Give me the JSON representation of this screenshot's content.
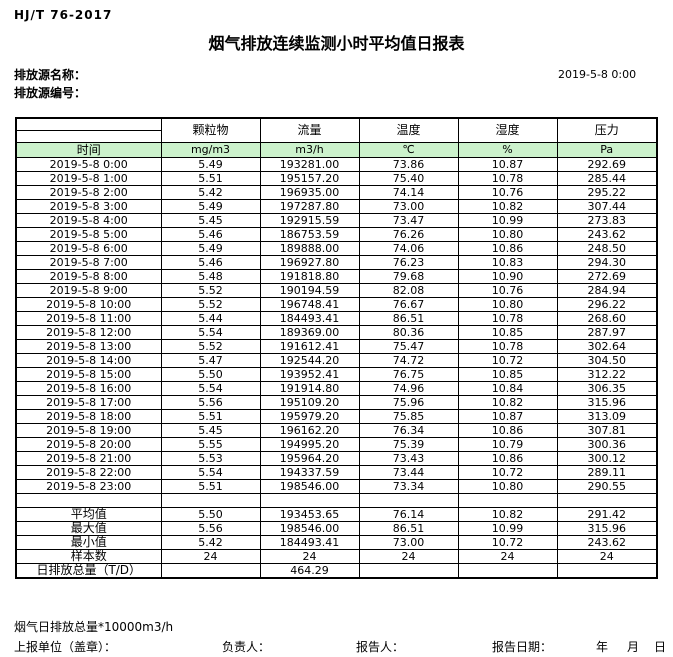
{
  "header": {
    "standard": "HJ/T 76-2017",
    "title": "烟气排放连续监测小时平均值日报表",
    "source_name_label": "排放源名称：",
    "source_code_label": "排放源编号：",
    "datetime": "2019-5-8 0:00"
  },
  "table": {
    "time_label": "时间",
    "columns": [
      "颗粒物",
      "流量",
      "温度",
      "湿度",
      "压力"
    ],
    "units": [
      "mg/m3",
      "m3/h",
      "℃",
      "%",
      "Pa"
    ],
    "rows": [
      {
        "time": "2019-5-8 0:00",
        "values": [
          "5.49",
          "193281.00",
          "73.86",
          "10.87",
          "292.69"
        ]
      },
      {
        "time": "2019-5-8 1:00",
        "values": [
          "5.51",
          "195157.20",
          "75.40",
          "10.78",
          "285.44"
        ]
      },
      {
        "time": "2019-5-8 2:00",
        "values": [
          "5.42",
          "196935.00",
          "74.14",
          "10.76",
          "295.22"
        ]
      },
      {
        "time": "2019-5-8 3:00",
        "values": [
          "5.49",
          "197287.80",
          "73.00",
          "10.82",
          "307.44"
        ]
      },
      {
        "time": "2019-5-8 4:00",
        "values": [
          "5.45",
          "192915.59",
          "73.47",
          "10.99",
          "273.83"
        ]
      },
      {
        "time": "2019-5-8 5:00",
        "values": [
          "5.46",
          "186753.59",
          "76.26",
          "10.80",
          "243.62"
        ]
      },
      {
        "time": "2019-5-8 6:00",
        "values": [
          "5.49",
          "189888.00",
          "74.06",
          "10.86",
          "248.50"
        ]
      },
      {
        "time": "2019-5-8 7:00",
        "values": [
          "5.46",
          "196927.80",
          "76.23",
          "10.83",
          "294.30"
        ]
      },
      {
        "time": "2019-5-8 8:00",
        "values": [
          "5.48",
          "191818.80",
          "79.68",
          "10.90",
          "272.69"
        ]
      },
      {
        "time": "2019-5-8 9:00",
        "values": [
          "5.52",
          "190194.59",
          "82.08",
          "10.76",
          "284.94"
        ]
      },
      {
        "time": "2019-5-8 10:00",
        "values": [
          "5.52",
          "196748.41",
          "76.67",
          "10.80",
          "296.22"
        ]
      },
      {
        "time": "2019-5-8 11:00",
        "values": [
          "5.44",
          "184493.41",
          "86.51",
          "10.78",
          "268.60"
        ]
      },
      {
        "time": "2019-5-8 12:00",
        "values": [
          "5.54",
          "189369.00",
          "80.36",
          "10.85",
          "287.97"
        ]
      },
      {
        "time": "2019-5-8 13:00",
        "values": [
          "5.52",
          "191612.41",
          "75.47",
          "10.78",
          "302.64"
        ]
      },
      {
        "time": "2019-5-8 14:00",
        "values": [
          "5.47",
          "192544.20",
          "74.72",
          "10.72",
          "304.50"
        ]
      },
      {
        "time": "2019-5-8 15:00",
        "values": [
          "5.50",
          "193952.41",
          "76.75",
          "10.85",
          "312.22"
        ]
      },
      {
        "time": "2019-5-8 16:00",
        "values": [
          "5.54",
          "191914.80",
          "74.96",
          "10.84",
          "306.35"
        ]
      },
      {
        "time": "2019-5-8 17:00",
        "values": [
          "5.56",
          "195109.20",
          "75.96",
          "10.82",
          "315.96"
        ]
      },
      {
        "time": "2019-5-8 18:00",
        "values": [
          "5.51",
          "195979.20",
          "75.85",
          "10.87",
          "313.09"
        ]
      },
      {
        "time": "2019-5-8 19:00",
        "values": [
          "5.45",
          "196162.20",
          "76.34",
          "10.86",
          "307.81"
        ]
      },
      {
        "time": "2019-5-8 20:00",
        "values": [
          "5.55",
          "194995.20",
          "75.39",
          "10.79",
          "300.36"
        ]
      },
      {
        "time": "2019-5-8 21:00",
        "values": [
          "5.53",
          "195964.20",
          "73.43",
          "10.86",
          "300.12"
        ]
      },
      {
        "time": "2019-5-8 22:00",
        "values": [
          "5.54",
          "194337.59",
          "73.44",
          "10.72",
          "289.11"
        ]
      },
      {
        "time": "2019-5-8 23:00",
        "values": [
          "5.51",
          "198546.00",
          "73.34",
          "10.80",
          "290.55"
        ]
      }
    ],
    "summary": [
      {
        "label": "平均值",
        "values": [
          "5.50",
          "193453.65",
          "76.14",
          "10.82",
          "291.42"
        ]
      },
      {
        "label": "最大值",
        "values": [
          "5.56",
          "198546.00",
          "86.51",
          "10.99",
          "315.96"
        ]
      },
      {
        "label": "最小值",
        "values": [
          "5.42",
          "184493.41",
          "73.00",
          "10.72",
          "243.62"
        ]
      },
      {
        "label": "样本数",
        "values": [
          "24",
          "24",
          "24",
          "24",
          "24"
        ]
      },
      {
        "label": "日排放总量（T/D）",
        "values": [
          "",
          "464.29",
          "",
          "",
          ""
        ]
      }
    ]
  },
  "footer": {
    "note": "烟气日排放总量*10000m3/h",
    "report_unit_label": "上报单位（盖章）：",
    "responsible_label": "负责人：",
    "reporter_label": "报告人：",
    "report_date_label": "报告日期：",
    "year_label": "年",
    "month_label": "月",
    "day_label": "日"
  },
  "colors": {
    "unit_row_green": "#ccf2cc",
    "border_black": "#000000"
  }
}
